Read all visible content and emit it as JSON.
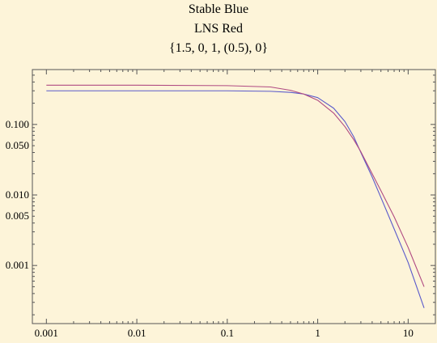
{
  "chart_data": {
    "type": "line",
    "title_lines": [
      "Stable Blue",
      "LNS Red",
      "{1.5, 0, 1, (0.5), 0}"
    ],
    "xlabel": "",
    "ylabel": "",
    "x_scale": "log",
    "y_scale": "log",
    "xlim": [
      0.0007,
      20
    ],
    "ylim": [
      0.00015,
      0.6
    ],
    "x_ticks": [
      {
        "value": 0.001,
        "label": "0.001"
      },
      {
        "value": 0.01,
        "label": "0.01"
      },
      {
        "value": 0.1,
        "label": "0.1"
      },
      {
        "value": 1,
        "label": "1"
      },
      {
        "value": 10,
        "label": "10"
      }
    ],
    "y_ticks": [
      {
        "value": 0.1,
        "label": "0.100"
      },
      {
        "value": 0.05,
        "label": "0.050"
      },
      {
        "value": 0.01,
        "label": "0.010"
      },
      {
        "value": 0.005,
        "label": "0.005"
      },
      {
        "value": 0.001,
        "label": "0.001"
      }
    ],
    "grid": false,
    "series": [
      {
        "color": "#5a5acb",
        "x": [
          0.001,
          0.01,
          0.1,
          0.3,
          0.5,
          0.7,
          1,
          1.5,
          2,
          2.5,
          3,
          4,
          5,
          7,
          10,
          15
        ],
        "y": [
          0.3,
          0.3,
          0.3,
          0.295,
          0.285,
          0.27,
          0.24,
          0.17,
          0.11,
          0.067,
          0.04,
          0.018,
          0.0092,
          0.0033,
          0.0011,
          0.00025
        ]
      },
      {
        "color": "#b04a82",
        "x": [
          0.001,
          0.01,
          0.1,
          0.3,
          0.5,
          0.7,
          1,
          1.5,
          2,
          2.5,
          3,
          4,
          5,
          7,
          10,
          15
        ],
        "y": [
          0.36,
          0.36,
          0.355,
          0.34,
          0.305,
          0.27,
          0.22,
          0.145,
          0.093,
          0.061,
          0.041,
          0.02,
          0.0115,
          0.0049,
          0.0018,
          0.0005
        ]
      }
    ]
  }
}
